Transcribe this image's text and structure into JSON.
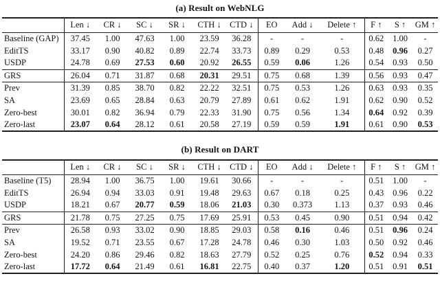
{
  "page": {
    "background": "#ffffff",
    "text_color": "#141414",
    "rule_color": "#1e1e1e"
  },
  "tables": [
    {
      "title": "(a) Result on WebNLG",
      "columns": [
        "",
        "Len ↓",
        "CR ↓",
        "SC ↓",
        "SR ↓",
        "CTH ↓",
        "CTD ↓",
        "EO",
        "Add ↓",
        "Delete ↑",
        "F ↑",
        "S ↑",
        "GM ↑"
      ],
      "row_groups": [
        [
          {
            "label": "Baseline (GAP)",
            "values": [
              "37.45",
              "1.00",
              "47.63",
              "1.00",
              "23.59",
              "36.28",
              "-",
              "-",
              "-",
              "0.62",
              "1.00",
              "-"
            ],
            "bold": []
          },
          {
            "label": "EditTS",
            "values": [
              "33.17",
              "0.90",
              "40.82",
              "0.89",
              "22.74",
              "33.73",
              "0.89",
              "0.29",
              "0.53",
              "0.48",
              "0.96",
              "0.27"
            ],
            "bold": [
              10
            ]
          },
          {
            "label": "USDP",
            "values": [
              "24.78",
              "0.69",
              "27.53",
              "0.60",
              "20.92",
              "26.55",
              "0.59",
              "0.06",
              "1.26",
              "0.54",
              "0.93",
              "0.50"
            ],
            "bold": [
              2,
              3,
              5,
              7
            ]
          }
        ],
        [
          {
            "label": "GRS",
            "values": [
              "26.04",
              "0.71",
              "31.87",
              "0.68",
              "20.31",
              "29.51",
              "0.75",
              "0.68",
              "1.39",
              "0.56",
              "0.93",
              "0.47"
            ],
            "bold": [
              4
            ]
          }
        ],
        [
          {
            "label": "Prev",
            "values": [
              "31.39",
              "0.85",
              "38.70",
              "0.82",
              "22.22",
              "32.51",
              "0.75",
              "0.53",
              "1.26",
              "0.63",
              "0.93",
              "0.35"
            ],
            "bold": []
          },
          {
            "label": "SA",
            "values": [
              "23.69",
              "0.65",
              "28.84",
              "0.63",
              "20.79",
              "27.89",
              "0.61",
              "0.62",
              "1.91",
              "0.62",
              "0.90",
              "0.52"
            ],
            "bold": []
          },
          {
            "label": "Zero-best",
            "values": [
              "30.01",
              "0.82",
              "36.94",
              "0.79",
              "22.33",
              "31.90",
              "0.75",
              "0.56",
              "1.34",
              "0.64",
              "0.92",
              "0.39"
            ],
            "bold": [
              9
            ]
          },
          {
            "label": "Zero-last",
            "values": [
              "23.07",
              "0.64",
              "28.12",
              "0.61",
              "20.58",
              "27.19",
              "0.59",
              "0.59",
              "1.91",
              "0.61",
              "0.90",
              "0.53"
            ],
            "bold": [
              0,
              1,
              8,
              11
            ]
          }
        ]
      ]
    },
    {
      "title": "(b) Result on DART",
      "columns": [
        "",
        "Len ↓",
        "CR ↓",
        "SC ↓",
        "SR ↓",
        "CTH ↓",
        "CTD ↓",
        "EO",
        "Add ↓",
        "Delete ↑",
        "F ↑",
        "S ↑",
        "GM ↑"
      ],
      "row_groups": [
        [
          {
            "label": "Baseline (T5)",
            "values": [
              "28.94",
              "1.00",
              "36.75",
              "1.00",
              "19.61",
              "30.66",
              "-",
              "-",
              "-",
              "0.51",
              "1.00",
              "-"
            ],
            "bold": []
          },
          {
            "label": "EditTS",
            "values": [
              "26.94",
              "0.94",
              "33.03",
              "0.91",
              "19.48",
              "29.63",
              "0.67",
              "0.18",
              "0.25",
              "0.43",
              "0.96",
              "0.22"
            ],
            "bold": []
          },
          {
            "label": "USDP",
            "values": [
              "18.21",
              "0.67",
              "20.77",
              "0.59",
              "18.06",
              "21.03",
              "0.30",
              "0.373",
              "1.13",
              "0.37",
              "0.93",
              "0.46"
            ],
            "bold": [
              2,
              3,
              5
            ]
          }
        ],
        [
          {
            "label": "GRS",
            "values": [
              "21.78",
              "0.75",
              "27.25",
              "0.75",
              "17.69",
              "25.91",
              "0.53",
              "0.45",
              "0.90",
              "0.51",
              "0.94",
              "0.42"
            ],
            "bold": []
          }
        ],
        [
          {
            "label": "Prev",
            "values": [
              "26.58",
              "0.93",
              "33.02",
              "0.90",
              "18.85",
              "29.03",
              "0.58",
              "0.16",
              "0.46",
              "0.51",
              "0.96",
              "0.24"
            ],
            "bold": [
              7,
              10
            ]
          },
          {
            "label": "SA",
            "values": [
              "19.52",
              "0.71",
              "23.55",
              "0.67",
              "17.28",
              "24.78",
              "0.46",
              "0.30",
              "1.03",
              "0.50",
              "0.92",
              "0.46"
            ],
            "bold": []
          },
          {
            "label": "Zero-best",
            "values": [
              "24.20",
              "0.86",
              "29.46",
              "0.82",
              "18.63",
              "27.79",
              "0.52",
              "0.25",
              "0.76",
              "0.52",
              "0.94",
              "0.33"
            ],
            "bold": [
              9
            ]
          },
          {
            "label": "Zero-last",
            "values": [
              "17.72",
              "0.64",
              "21.49",
              "0.61",
              "16.81",
              "22.75",
              "0.40",
              "0.37",
              "1.20",
              "0.51",
              "0.91",
              "0.51"
            ],
            "bold": [
              0,
              1,
              4,
              8,
              11
            ]
          }
        ]
      ]
    }
  ]
}
